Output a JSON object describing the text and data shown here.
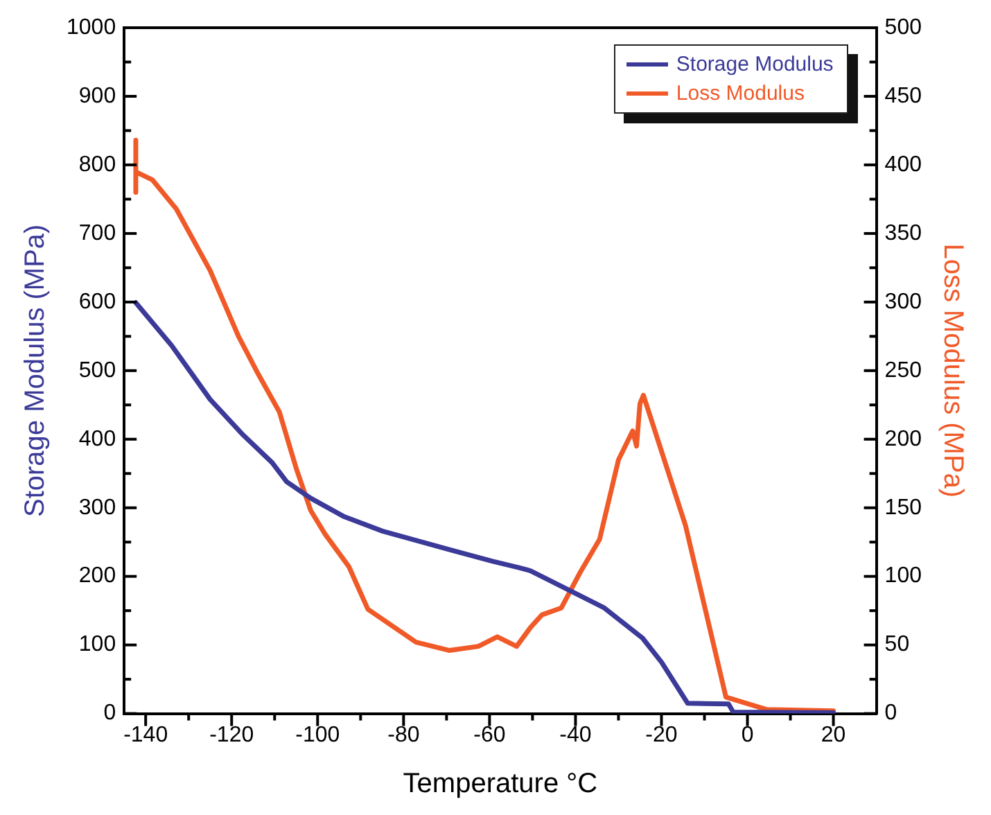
{
  "chart_data": {
    "type": "line",
    "xlabel": "Temperature °C",
    "ylabel": "Storage Modulus (MPa)",
    "y2label": "Loss Modulus (MPa)",
    "xlim": [
      -145,
      30
    ],
    "xticks": [
      -140,
      {
        "value": -130,
        "label": null
      },
      -120,
      {
        "value": -110,
        "label": null
      },
      -100,
      {
        "value": -90,
        "label": null
      },
      -80,
      {
        "value": -70,
        "label": null
      },
      -60,
      {
        "value": -50,
        "label": null
      },
      -40,
      {
        "value": -30,
        "label": null
      },
      -20,
      {
        "value": -10,
        "label": null
      },
      0,
      {
        "value": 10,
        "label": null
      },
      20
    ],
    "ylim": [
      0,
      1000
    ],
    "yticks": [
      0,
      {
        "value": 50,
        "label": null
      },
      100,
      {
        "value": 150,
        "label": null
      },
      200,
      {
        "value": 250,
        "label": null
      },
      300,
      {
        "value": 350,
        "label": null
      },
      400,
      {
        "value": 450,
        "label": null
      },
      500,
      {
        "value": 550,
        "label": null
      },
      600,
      {
        "value": 650,
        "label": null
      },
      700,
      {
        "value": 750,
        "label": null
      },
      800,
      {
        "value": 850,
        "label": null
      },
      900,
      {
        "value": 950,
        "label": null
      },
      1000
    ],
    "y2lim": [
      0,
      500
    ],
    "y2ticks": [
      0,
      {
        "value": 25,
        "label": null
      },
      50,
      {
        "value": 75,
        "label": null
      },
      100,
      {
        "value": 125,
        "label": null
      },
      150,
      {
        "value": 175,
        "label": null
      },
      200,
      {
        "value": 225,
        "label": null
      },
      250,
      {
        "value": 275,
        "label": null
      },
      300,
      {
        "value": 325,
        "label": null
      },
      350,
      {
        "value": 375,
        "label": null
      },
      400,
      {
        "value": 425,
        "label": null
      },
      450,
      {
        "value": 475,
        "label": null
      },
      500
    ],
    "grid": false,
    "legend": "top right",
    "marker": "none",
    "line_style": "solid",
    "series": [
      {
        "name": "Storage Modulus",
        "color": "#3b3a98",
        "x": [
          -142.3,
          -134,
          -125,
          -117.3,
          -110.6,
          -107.2,
          -101.6,
          -93.8,
          -84.9,
          -69.3,
          -59.3,
          -53.3,
          -50.4,
          -42.2,
          -33.3,
          -24.4,
          -20,
          -13.9,
          -4.4,
          -3.3,
          20
        ],
        "values": [
          599,
          537,
          458,
          406,
          366,
          338,
          314,
          287,
          266,
          239,
          222,
          213,
          208,
          182,
          154,
          110,
          75,
          15,
          14,
          2,
          1
        ]
      },
      {
        "name": "Loss Modulus",
        "color": "#f05a28",
        "axis": "y2",
        "x": [
          -142.3,
          -142.3,
          -142.3,
          -142.3,
          -138.4,
          -132.9,
          -125,
          -118.4,
          -113.9,
          -108.9,
          -105,
          -101.6,
          -98.3,
          -92.7,
          -88.3,
          -82.7,
          -77.1,
          -69.3,
          -62.6,
          -58.2,
          -53.7,
          -50.4,
          -47.8,
          -43.3,
          -38.9,
          -34.4,
          -30,
          -26.7,
          -25.8,
          -25,
          -24.2,
          -14.4,
          -5,
          4.4,
          20
        ],
        "values": [
          380,
          418,
          380,
          395,
          389,
          368,
          323,
          275,
          248,
          220,
          179,
          148,
          131,
          107,
          76,
          64,
          52,
          46,
          49,
          56,
          49,
          63,
          72,
          77,
          103,
          127,
          185,
          206,
          195,
          226,
          232,
          137,
          12,
          3,
          2
        ]
      }
    ]
  }
}
